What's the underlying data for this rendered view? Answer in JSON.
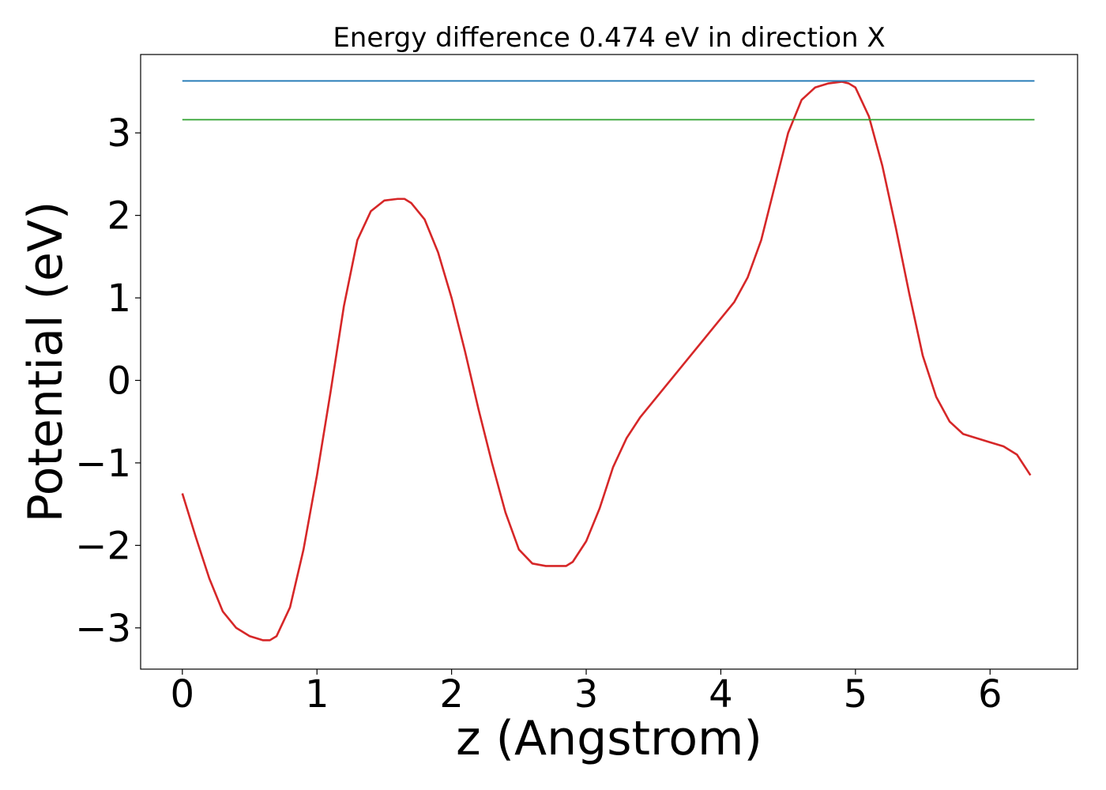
{
  "chart_data": {
    "type": "line",
    "title": "Energy difference 0.474 eV in direction X",
    "xlabel": "z (Angstrom)",
    "ylabel": "Potential (eV)",
    "xlim": [
      -0.31,
      6.65
    ],
    "ylim": [
      -3.5,
      3.95
    ],
    "xticks": [
      0,
      1,
      2,
      3,
      4,
      5,
      6
    ],
    "xtick_labels": [
      "0",
      "1",
      "2",
      "3",
      "4",
      "5",
      "6"
    ],
    "yticks": [
      -3,
      -2,
      -1,
      0,
      1,
      2,
      3
    ],
    "ytick_labels": [
      "−3",
      "−2",
      "−1",
      "0",
      "1",
      "2",
      "3"
    ],
    "grid": false,
    "series": [
      {
        "color": "#d62728",
        "x": [
          0,
          0.1,
          0.2,
          0.3,
          0.4,
          0.5,
          0.6,
          0.65,
          0.7,
          0.8,
          0.9,
          1.0,
          1.1,
          1.2,
          1.3,
          1.4,
          1.5,
          1.6,
          1.65,
          1.7,
          1.8,
          1.9,
          2.0,
          2.1,
          2.2,
          2.3,
          2.4,
          2.5,
          2.6,
          2.7,
          2.8,
          2.85,
          2.9,
          3.0,
          3.1,
          3.2,
          3.3,
          3.4,
          3.5,
          3.6,
          3.7,
          3.8,
          3.9,
          4.0,
          4.1,
          4.2,
          4.3,
          4.4,
          4.5,
          4.6,
          4.7,
          4.8,
          4.9,
          4.95,
          5.0,
          5.1,
          5.2,
          5.3,
          5.4,
          5.5,
          5.6,
          5.7,
          5.8,
          5.9,
          6.0,
          6.1,
          6.2,
          6.3
        ],
        "y": [
          -1.37,
          -1.9,
          -2.4,
          -2.8,
          -3.0,
          -3.1,
          -3.15,
          -3.15,
          -3.1,
          -2.75,
          -2.05,
          -1.15,
          -0.15,
          0.9,
          1.7,
          2.05,
          2.18,
          2.2,
          2.2,
          2.15,
          1.95,
          1.55,
          1.0,
          0.35,
          -0.35,
          -1.0,
          -1.6,
          -2.05,
          -2.22,
          -2.25,
          -2.25,
          -2.25,
          -2.2,
          -1.95,
          -1.55,
          -1.05,
          -0.7,
          -0.45,
          -0.25,
          -0.05,
          0.15,
          0.35,
          0.55,
          0.75,
          0.95,
          1.25,
          1.7,
          2.35,
          3.0,
          3.4,
          3.55,
          3.6,
          3.62,
          3.6,
          3.55,
          3.2,
          2.6,
          1.85,
          1.05,
          0.3,
          -0.2,
          -0.5,
          -0.65,
          -0.7,
          -0.75,
          -0.8,
          -0.9,
          -1.15
        ]
      },
      {
        "color": "#1f77b4",
        "x": [
          0,
          6.33
        ],
        "y": [
          3.63,
          3.63
        ]
      },
      {
        "color": "#2ca02c",
        "x": [
          0,
          6.33
        ],
        "y": [
          3.16,
          3.16
        ]
      }
    ]
  }
}
